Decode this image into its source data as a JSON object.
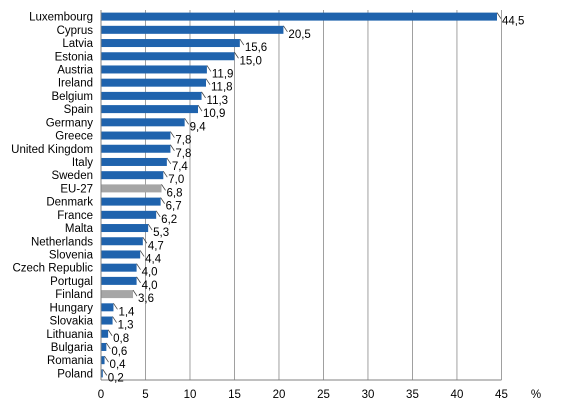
{
  "chart_data": {
    "type": "bar",
    "orientation": "horizontal",
    "categories": [
      "Luxembourg",
      "Cyprus",
      "Latvia",
      "Estonia",
      "Austria",
      "Ireland",
      "Belgium",
      "Spain",
      "Germany",
      "Greece",
      "United Kingdom",
      "Italy",
      "Sweden",
      "EU-27",
      "Denmark",
      "France",
      "Malta",
      "Netherlands",
      "Slovenia",
      "Czech Republic",
      "Portugal",
      "Finland",
      "Hungary",
      "Slovakia",
      "Lithuania",
      "Bulgaria",
      "Romania",
      "Poland"
    ],
    "values": [
      44.5,
      20.5,
      15.6,
      15.0,
      11.9,
      11.8,
      11.3,
      10.9,
      9.4,
      7.8,
      7.8,
      7.4,
      7.0,
      6.8,
      6.7,
      6.2,
      5.3,
      4.7,
      4.4,
      4.0,
      4.0,
      3.6,
      1.4,
      1.3,
      0.8,
      0.6,
      0.4,
      0.2
    ],
    "value_labels": [
      "44,5",
      "20,5",
      "15,6",
      "15,0",
      "11,9",
      "11,8",
      "11,3",
      "10,9",
      "9,4",
      "7,8",
      "7,8",
      "7,4",
      "7,0",
      "6,8",
      "6,7",
      "6,2",
      "5,3",
      "4,7",
      "4,4",
      "4,0",
      "4,0",
      "3,6",
      "1,4",
      "1,3",
      "0,8",
      "0,6",
      "0,4",
      "0,2"
    ],
    "highlighted": [
      "EU-27",
      "Finland"
    ],
    "title": "",
    "xlabel": "",
    "ylabel": "",
    "x_unit": "%",
    "xlim": [
      0,
      45
    ],
    "xticks": [
      0,
      5,
      10,
      15,
      20,
      25,
      30,
      35,
      40,
      45
    ],
    "grid": "vertical",
    "legend": "none",
    "colors": {
      "bar": "#1f63ad",
      "highlight": "#a6a6a6",
      "grid": "#808080",
      "axis": "#808080",
      "text": "#000000"
    }
  }
}
